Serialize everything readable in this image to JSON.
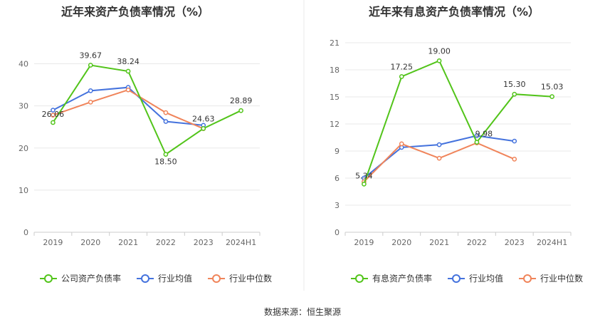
{
  "footer": {
    "source": "数据来源：恒生聚源"
  },
  "colors": {
    "company": "#52c41a",
    "industry_avg": "#4472dd",
    "industry_median": "#f0845a",
    "axis": "#cccccc",
    "grid": "#e8e8e8",
    "divider": "#e8e8e8"
  },
  "chart_data": [
    {
      "type": "line",
      "title": "近年来资产负债率情况（%）",
      "categories": [
        "2019",
        "2020",
        "2021",
        "2022",
        "2023",
        "2024H1"
      ],
      "ylim": [
        0,
        45
      ],
      "yticks": [
        0,
        10,
        20,
        30,
        40
      ],
      "grid": true,
      "legend_position": "bottom",
      "series": [
        {
          "name": "公司资产负债率",
          "color_key": "company",
          "labeled": true,
          "values": [
            26.06,
            39.67,
            38.24,
            18.5,
            24.63,
            28.89
          ]
        },
        {
          "name": "行业均值",
          "color_key": "industry_avg",
          "labeled": false,
          "values": [
            29.0,
            33.6,
            34.4,
            26.3,
            25.4,
            null
          ]
        },
        {
          "name": "行业中位数",
          "color_key": "industry_median",
          "labeled": false,
          "values": [
            27.8,
            30.9,
            33.8,
            28.4,
            24.6,
            null
          ]
        }
      ],
      "data_labels": [
        "26.06",
        "39.67",
        "38.24",
        "18.50",
        "24.63",
        "28.89"
      ]
    },
    {
      "type": "line",
      "title": "近年来有息资产负债率情况（%）",
      "categories": [
        "2019",
        "2020",
        "2021",
        "2022",
        "2023",
        "2024H1"
      ],
      "ylim": [
        0,
        21
      ],
      "yticks": [
        0,
        3,
        6,
        9,
        12,
        15,
        18,
        21
      ],
      "grid": true,
      "legend_position": "bottom",
      "series": [
        {
          "name": "有息资产负债率",
          "color_key": "company",
          "labeled": true,
          "values": [
            5.34,
            17.25,
            19.0,
            9.98,
            15.3,
            15.03
          ]
        },
        {
          "name": "行业均值",
          "color_key": "industry_avg",
          "labeled": false,
          "values": [
            6.0,
            9.4,
            9.7,
            10.7,
            10.1,
            null
          ]
        },
        {
          "name": "行业中位数",
          "color_key": "industry_median",
          "labeled": false,
          "values": [
            5.6,
            9.8,
            8.2,
            9.9,
            8.1,
            null
          ]
        }
      ],
      "data_labels": [
        "5.34",
        "17.25",
        "19.00",
        "9.98",
        "15.30",
        "15.03"
      ]
    }
  ]
}
